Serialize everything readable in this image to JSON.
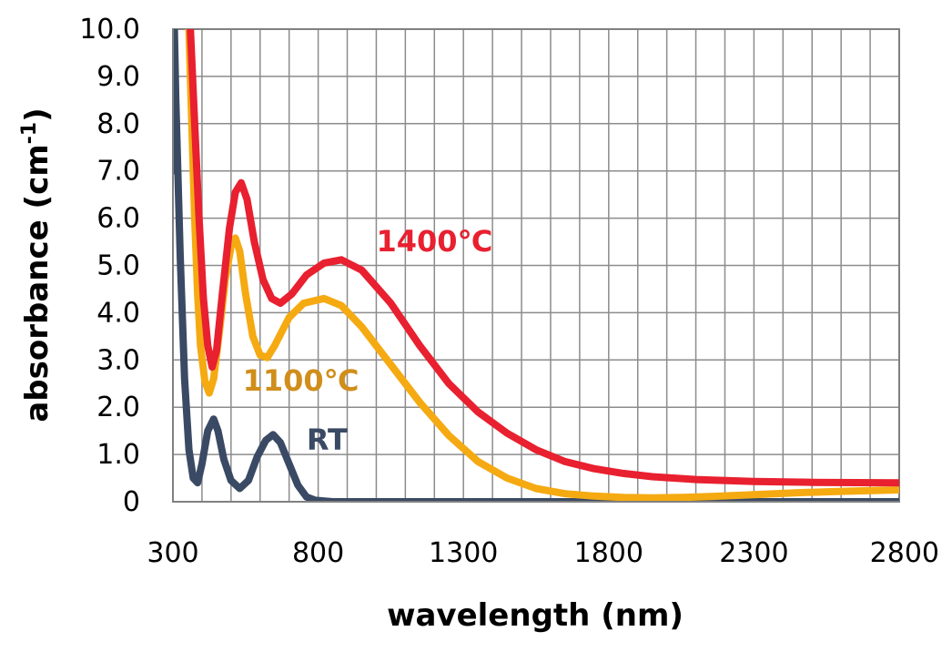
{
  "chart_data": {
    "type": "line",
    "title": "",
    "xlabel": "wavelength (nm)",
    "ylabel_main": "absorbance (cm",
    "ylabel_sup": "-1",
    "ylabel_close": ")",
    "xlim": [
      300,
      2800
    ],
    "ylim": [
      0,
      10
    ],
    "x_ticks": [
      300,
      800,
      1300,
      1800,
      2300,
      2800
    ],
    "x_tick_labels": [
      "300",
      "800",
      "1300",
      "1800",
      "2300",
      "2800"
    ],
    "y_ticks": [
      0,
      1,
      2,
      3,
      4,
      5,
      6,
      7,
      8,
      9,
      10
    ],
    "y_tick_labels": [
      "0",
      "1.0",
      "2.0",
      "3.0",
      "4.0",
      "5.0",
      "6.0",
      "7.0",
      "8.0",
      "9.0",
      "10.0"
    ],
    "x_minor_step": 100,
    "grid": true,
    "series": [
      {
        "name": "RT",
        "color": "#3a4a64",
        "label_color": "#3a4a64",
        "points": [
          [
            300,
            7.0
          ],
          [
            305,
            10.0
          ],
          [
            310,
            8.5
          ],
          [
            325,
            5.2
          ],
          [
            340,
            2.6
          ],
          [
            355,
            1.1
          ],
          [
            370,
            0.5
          ],
          [
            385,
            0.4
          ],
          [
            400,
            0.8
          ],
          [
            420,
            1.5
          ],
          [
            440,
            1.75
          ],
          [
            455,
            1.5
          ],
          [
            475,
            0.9
          ],
          [
            500,
            0.45
          ],
          [
            530,
            0.28
          ],
          [
            560,
            0.45
          ],
          [
            590,
            0.95
          ],
          [
            620,
            1.3
          ],
          [
            645,
            1.42
          ],
          [
            670,
            1.25
          ],
          [
            700,
            0.8
          ],
          [
            730,
            0.35
          ],
          [
            760,
            0.1
          ],
          [
            790,
            0.03
          ],
          [
            850,
            0.0
          ],
          [
            1200,
            0.0
          ],
          [
            2000,
            0.0
          ],
          [
            2800,
            0.0
          ]
        ]
      },
      {
        "name": "1100℃",
        "color": "#f5aa12",
        "label_color": "#d08e1b",
        "points": [
          [
            355,
            10.0
          ],
          [
            365,
            8.0
          ],
          [
            375,
            6.0
          ],
          [
            385,
            4.4
          ],
          [
            395,
            3.3
          ],
          [
            410,
            2.55
          ],
          [
            425,
            2.3
          ],
          [
            440,
            2.6
          ],
          [
            460,
            3.6
          ],
          [
            480,
            4.7
          ],
          [
            500,
            5.4
          ],
          [
            515,
            5.58
          ],
          [
            530,
            5.3
          ],
          [
            550,
            4.4
          ],
          [
            575,
            3.5
          ],
          [
            600,
            3.1
          ],
          [
            625,
            3.05
          ],
          [
            650,
            3.3
          ],
          [
            700,
            3.9
          ],
          [
            750,
            4.2
          ],
          [
            820,
            4.3
          ],
          [
            880,
            4.15
          ],
          [
            950,
            3.7
          ],
          [
            1050,
            2.9
          ],
          [
            1150,
            2.1
          ],
          [
            1250,
            1.4
          ],
          [
            1350,
            0.85
          ],
          [
            1450,
            0.5
          ],
          [
            1550,
            0.28
          ],
          [
            1650,
            0.17
          ],
          [
            1750,
            0.12
          ],
          [
            1850,
            0.09
          ],
          [
            1950,
            0.08
          ],
          [
            2050,
            0.09
          ],
          [
            2150,
            0.11
          ],
          [
            2300,
            0.15
          ],
          [
            2450,
            0.19
          ],
          [
            2600,
            0.22
          ],
          [
            2800,
            0.25
          ]
        ]
      },
      {
        "name": "1400℃",
        "color": "#e8202f",
        "label_color": "#e8202f",
        "points": [
          [
            360,
            10.0
          ],
          [
            375,
            8.0
          ],
          [
            390,
            6.0
          ],
          [
            405,
            4.3
          ],
          [
            420,
            3.3
          ],
          [
            435,
            2.85
          ],
          [
            450,
            3.2
          ],
          [
            470,
            4.4
          ],
          [
            495,
            5.8
          ],
          [
            515,
            6.55
          ],
          [
            535,
            6.75
          ],
          [
            555,
            6.4
          ],
          [
            580,
            5.5
          ],
          [
            610,
            4.7
          ],
          [
            640,
            4.3
          ],
          [
            670,
            4.2
          ],
          [
            710,
            4.4
          ],
          [
            760,
            4.8
          ],
          [
            820,
            5.05
          ],
          [
            880,
            5.12
          ],
          [
            950,
            4.9
          ],
          [
            1050,
            4.2
          ],
          [
            1150,
            3.3
          ],
          [
            1250,
            2.5
          ],
          [
            1350,
            1.9
          ],
          [
            1450,
            1.45
          ],
          [
            1550,
            1.1
          ],
          [
            1650,
            0.85
          ],
          [
            1750,
            0.7
          ],
          [
            1850,
            0.6
          ],
          [
            1950,
            0.53
          ],
          [
            2100,
            0.47
          ],
          [
            2300,
            0.43
          ],
          [
            2500,
            0.41
          ],
          [
            2800,
            0.4
          ]
        ]
      }
    ],
    "series_label_positions": [
      {
        "series": "1400℃",
        "x": 1000,
        "y": 5.3
      },
      {
        "series": "1100℃",
        "x": 540,
        "y": 2.35
      },
      {
        "series": "RT",
        "x": 760,
        "y": 1.1
      }
    ]
  }
}
